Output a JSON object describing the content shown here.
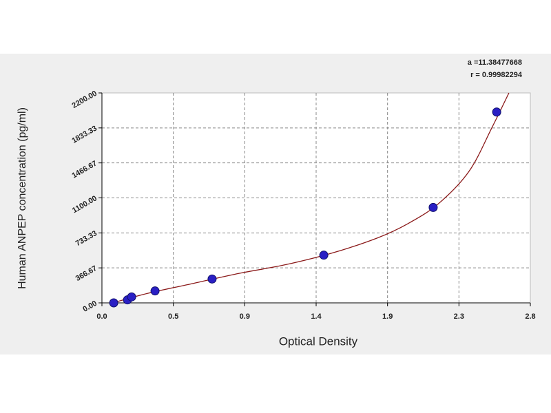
{
  "chart_data": {
    "type": "scatter",
    "x_label": "Optical Density",
    "y_label": "Human ANPEP concentration (pg/ml)",
    "annotations": [
      "a =11.38477668",
      "r = 0.99982294"
    ],
    "xlim": [
      0,
      2.8
    ],
    "xticks": [
      {
        "value": 0,
        "label": "0.0"
      },
      {
        "value": 0.4667,
        "label": "0.5"
      },
      {
        "value": 0.9333,
        "label": "0.9"
      },
      {
        "value": 1.4,
        "label": "1.4"
      },
      {
        "value": 1.8667,
        "label": "1.9"
      },
      {
        "value": 2.3333,
        "label": "2.3"
      },
      {
        "value": 2.8,
        "label": "2.8"
      }
    ],
    "ylim": [
      0,
      2200
    ],
    "yticks": [
      {
        "value": 0,
        "label": "0.00"
      },
      {
        "value": 366.67,
        "label": "366.67"
      },
      {
        "value": 733.33,
        "label": "733.33"
      },
      {
        "value": 1100,
        "label": "1100.00"
      },
      {
        "value": 1466.67,
        "label": "1466.67"
      },
      {
        "value": 1833.33,
        "label": "1833.33"
      },
      {
        "value": 2200,
        "label": "2200.00"
      }
    ],
    "grid": true,
    "series": [
      {
        "color": "#2a1fc4",
        "marker": true,
        "x": [
          0.077,
          0.167,
          0.194,
          0.347,
          0.72,
          1.45,
          2.165,
          2.58
        ],
        "values": [
          0,
          31.25,
          62.5,
          125,
          250,
          500,
          1000,
          2000
        ]
      },
      {
        "color": "#8b1a1a",
        "marker": false,
        "x": [
          0.07,
          0.3,
          0.6,
          0.9,
          1.2,
          1.5,
          1.8,
          2.0,
          2.2,
          2.4,
          2.55,
          2.66
        ],
        "values": [
          0,
          100,
          205,
          310,
          400,
          520,
          680,
          830,
          1040,
          1380,
          1840,
          2200
        ]
      }
    ]
  }
}
